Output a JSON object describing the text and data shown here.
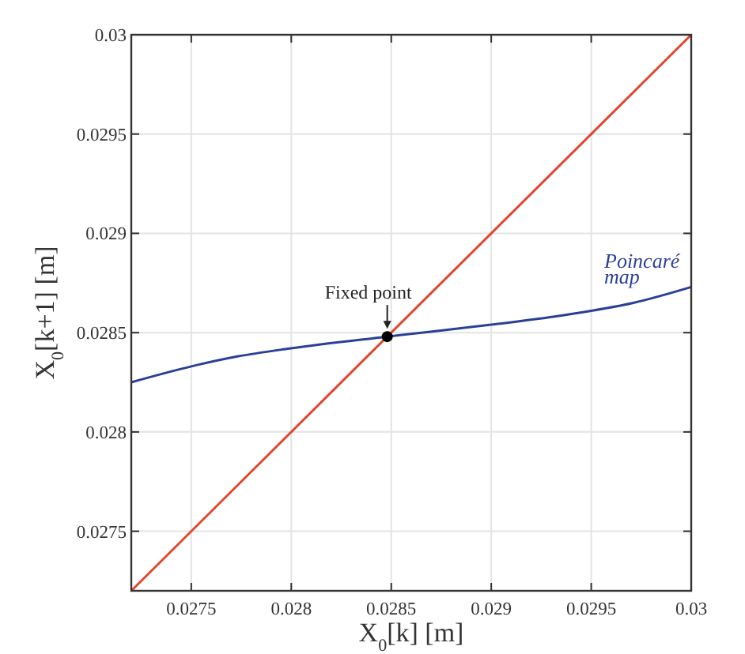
{
  "chart_data": {
    "type": "line",
    "xlabel": "X$_{0}$[k] [m]",
    "ylabel": "X$_{0}$[k+1] [m]",
    "xlim": [
      0.0272,
      0.03
    ],
    "ylim": [
      0.0272,
      0.03
    ],
    "xticks": [
      0.0275,
      0.028,
      0.0285,
      0.029,
      0.0295,
      0.03
    ],
    "yticks": [
      0.0275,
      0.028,
      0.0285,
      0.029,
      0.0295,
      0.03
    ],
    "grid": true,
    "series": [
      {
        "color": "#e0452b",
        "x": [
          0.0272,
          0.03
        ],
        "values": [
          0.0272,
          0.03
        ]
      },
      {
        "name": "Poincaré map",
        "color": "#2a3f97",
        "x": [
          0.0272,
          0.0275,
          0.02773,
          0.02799,
          0.02848,
          0.029,
          0.02931,
          0.0295,
          0.02971,
          0.03
        ],
        "values": [
          0.02825,
          0.02833,
          0.02838,
          0.02842,
          0.02848,
          0.02854,
          0.02858,
          0.02861,
          0.02865,
          0.02873
        ]
      },
      {
        "type": "scatter",
        "marker": "circle",
        "color": "#000000",
        "x": [
          0.02848
        ],
        "values": [
          0.02848
        ]
      }
    ],
    "annotations": [
      {
        "text": "Fixed point",
        "x": 0.02848,
        "y": 0.02848
      }
    ]
  }
}
